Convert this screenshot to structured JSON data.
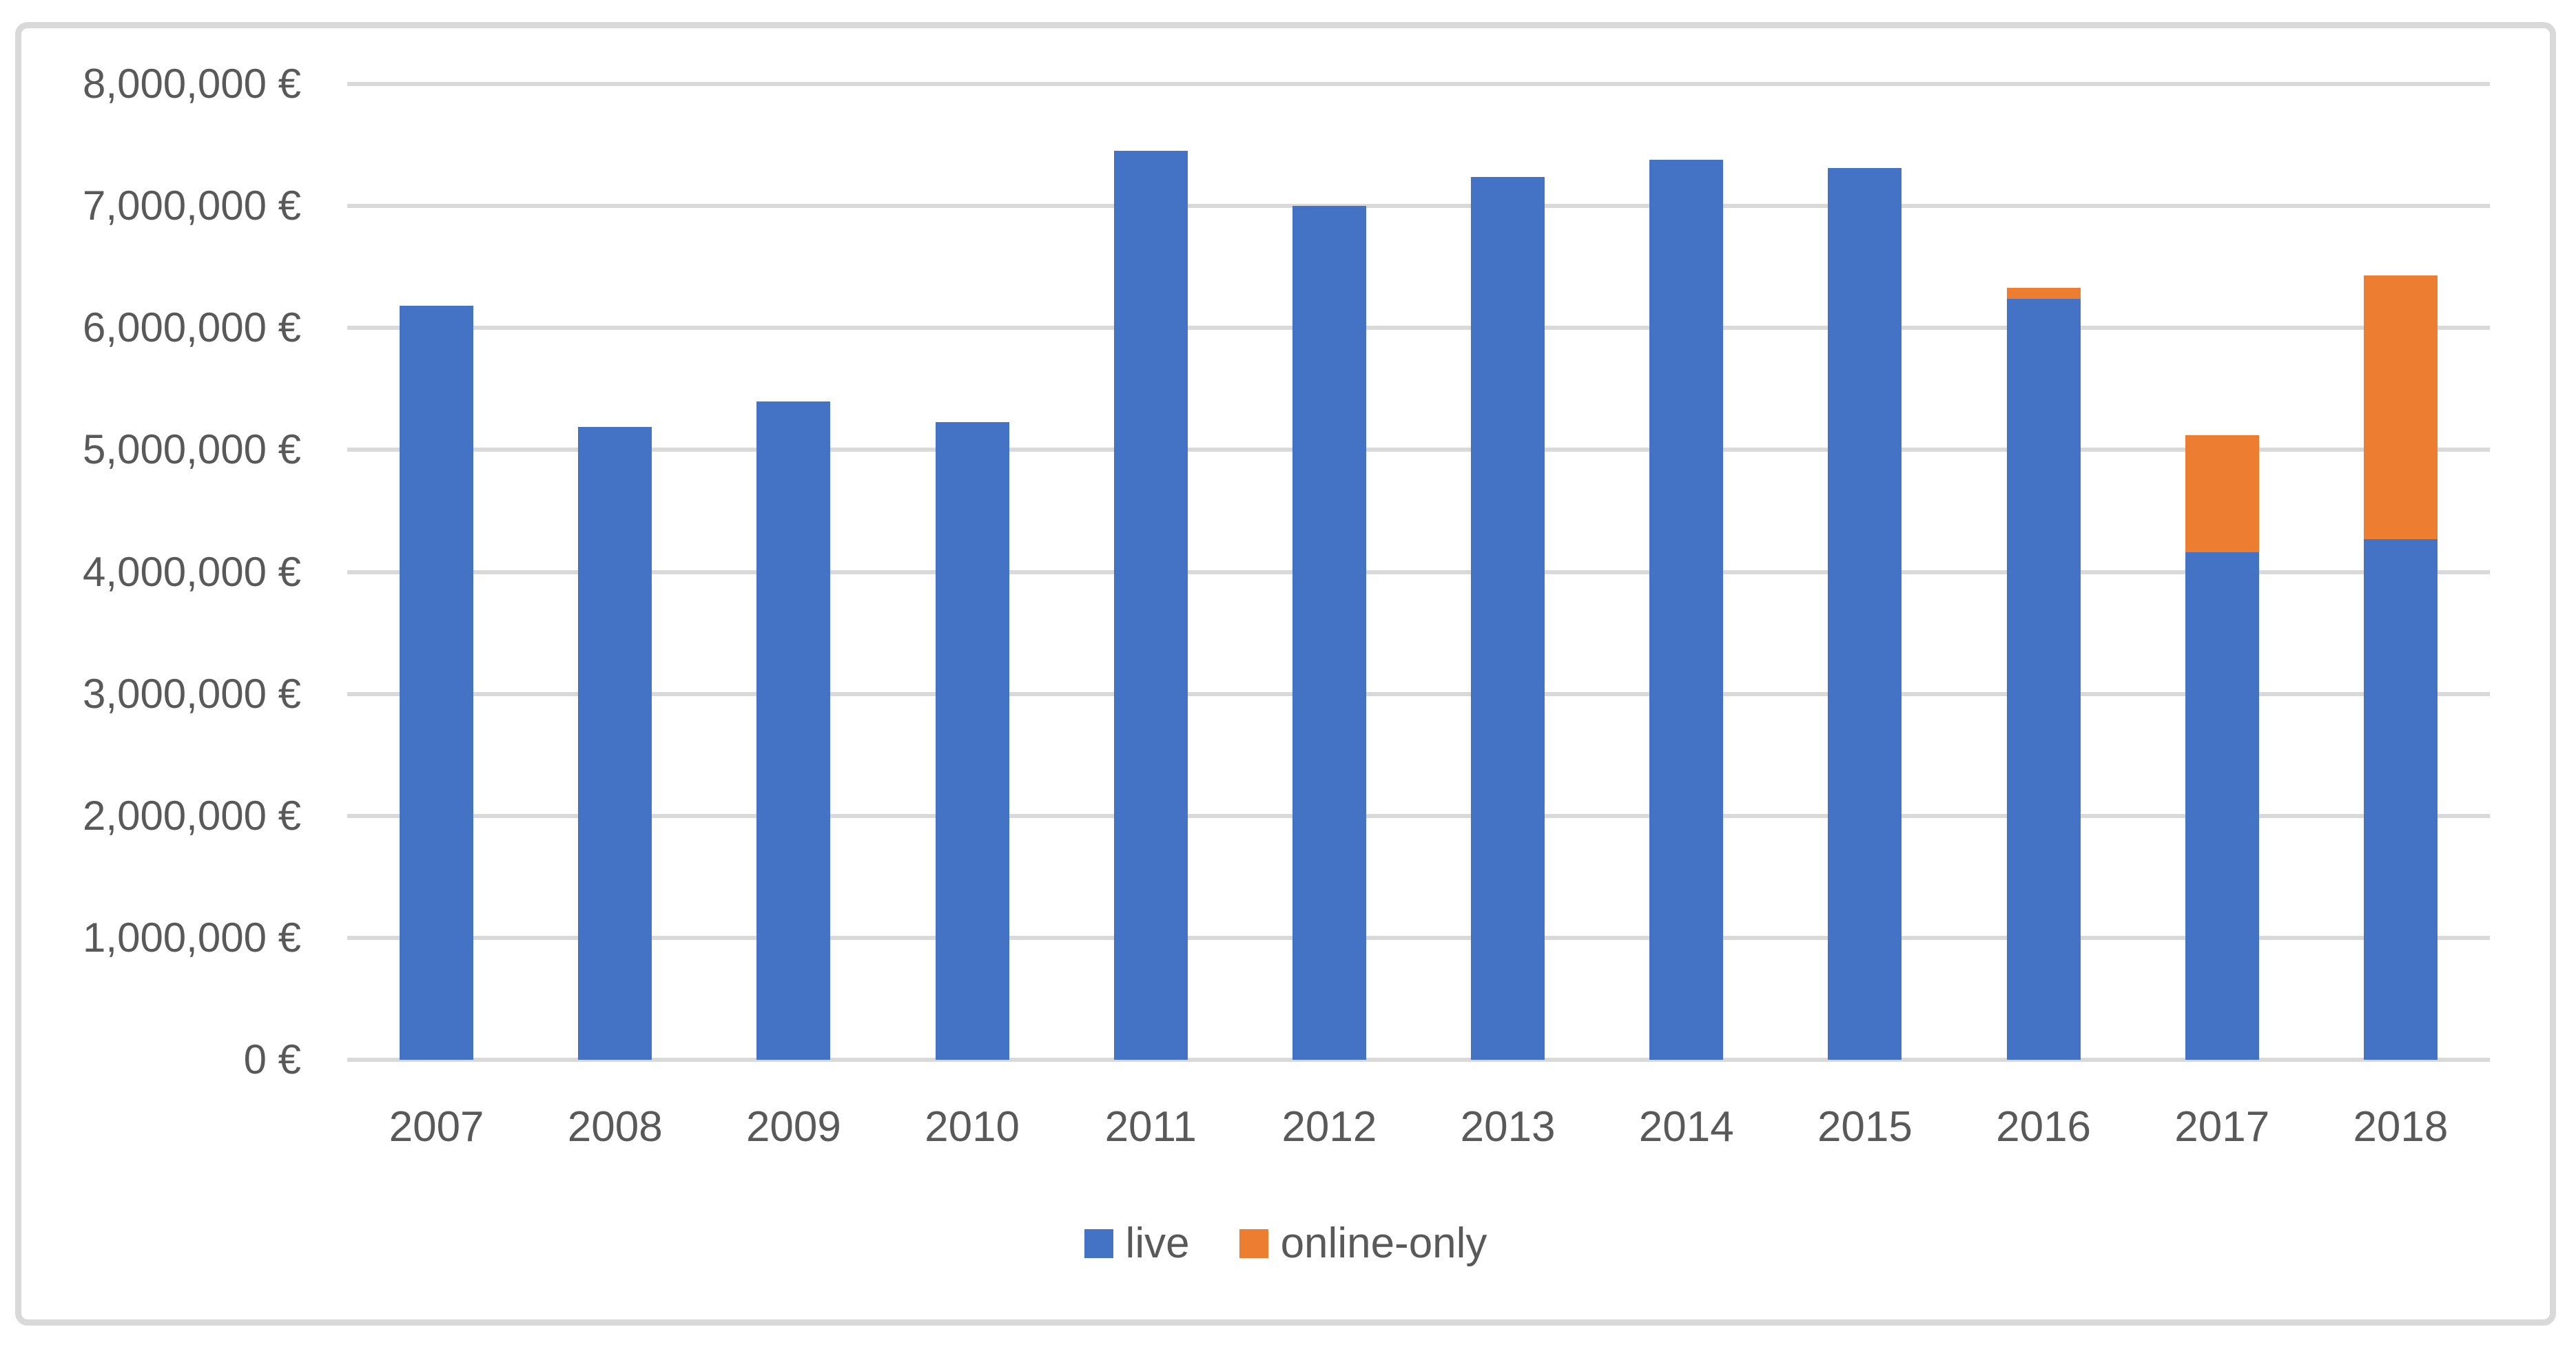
{
  "chart_data": {
    "type": "bar",
    "stacked": true,
    "title": "",
    "xlabel": "",
    "ylabel": "",
    "categories": [
      "2007",
      "2008",
      "2009",
      "2010",
      "2011",
      "2012",
      "2013",
      "2014",
      "2015",
      "2016",
      "2017",
      "2018"
    ],
    "series": [
      {
        "name": "live",
        "color": "#4472C4",
        "values": [
          6180000,
          5190000,
          5400000,
          5230000,
          7450000,
          7000000,
          7240000,
          7380000,
          7310000,
          6240000,
          4160000,
          4270000
        ]
      },
      {
        "name": "online-only",
        "color": "#ED7D31",
        "values": [
          0,
          0,
          0,
          0,
          0,
          0,
          0,
          0,
          0,
          90000,
          960000,
          2160000
        ]
      }
    ],
    "ylim": [
      0,
      8000000
    ],
    "ytick_step": 1000000,
    "y_tick_labels": [
      "0 €",
      "1,000,000 €",
      "2,000,000 €",
      "3,000,000 €",
      "4,000,000 €",
      "5,000,000 €",
      "6,000,000 €",
      "7,000,000 €",
      "8,000,000 €"
    ],
    "grid": true,
    "legend_position": "bottom",
    "legend": [
      {
        "label": "live",
        "color": "#4472C4"
      },
      {
        "label": "online-only",
        "color": "#ED7D31"
      }
    ]
  },
  "colors": {
    "background": "#FFFFFF",
    "frame_border": "#D9D9D9",
    "gridline": "#D9D9D9",
    "text": "#595959",
    "series_live": "#4472C4",
    "series_online_only": "#ED7D31"
  }
}
